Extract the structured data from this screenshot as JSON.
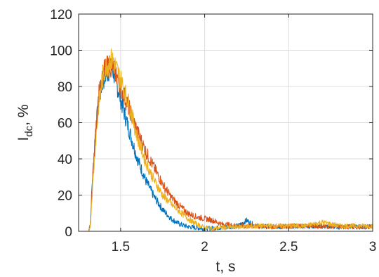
{
  "chart_data": {
    "type": "line",
    "title": "",
    "xlabel": "t, s",
    "ylabel_main": "I",
    "ylabel_sub": "dc",
    "ylabel_tail": ", %",
    "xlim": [
      1.25,
      3.0
    ],
    "ylim": [
      0,
      120
    ],
    "xticks": [
      1.5,
      2,
      2.5,
      3
    ],
    "xtick_labels": [
      "1.5",
      "2",
      "2.5",
      "3"
    ],
    "yticks": [
      0,
      20,
      40,
      60,
      80,
      100,
      120
    ],
    "ytick_labels": [
      "0",
      "20",
      "40",
      "60",
      "80",
      "100",
      "120"
    ],
    "grid": true,
    "legend": "none",
    "series": [
      {
        "color": "#0072BD",
        "x": [
          1.25,
          1.31,
          1.32,
          1.33,
          1.35,
          1.37,
          1.39,
          1.41,
          1.43,
          1.45,
          1.47,
          1.5,
          1.55,
          1.6,
          1.65,
          1.7,
          1.75,
          1.8,
          1.85,
          1.9,
          1.95,
          2.0,
          2.1,
          2.2,
          2.25,
          2.3,
          2.4,
          2.6,
          2.8,
          3.0
        ],
        "y": [
          0,
          0,
          5,
          25,
          55,
          72,
          82,
          86,
          89,
          90,
          84,
          73,
          56,
          40,
          28,
          19,
          12,
          7,
          4,
          2.5,
          2,
          1.5,
          2,
          3,
          6,
          3,
          2.5,
          3,
          2.5,
          2.5
        ]
      },
      {
        "color": "#D95319",
        "x": [
          1.25,
          1.31,
          1.32,
          1.33,
          1.35,
          1.37,
          1.39,
          1.41,
          1.43,
          1.45,
          1.47,
          1.5,
          1.55,
          1.6,
          1.65,
          1.7,
          1.75,
          1.8,
          1.85,
          1.9,
          1.95,
          2.0,
          2.05,
          2.1,
          2.2,
          2.4,
          2.6,
          2.8,
          3.0
        ],
        "y": [
          0,
          0,
          4,
          22,
          52,
          75,
          86,
          90,
          91,
          92,
          88,
          80,
          68,
          55,
          44,
          35,
          26,
          19,
          14,
          10,
          8,
          7,
          6,
          4,
          3,
          2.5,
          3,
          2.5,
          2.5
        ]
      },
      {
        "color": "#EDB120",
        "x": [
          1.25,
          1.31,
          1.32,
          1.33,
          1.35,
          1.37,
          1.39,
          1.41,
          1.43,
          1.45,
          1.47,
          1.5,
          1.55,
          1.6,
          1.65,
          1.7,
          1.75,
          1.8,
          1.85,
          1.9,
          1.95,
          2.0,
          2.05,
          2.1,
          2.2,
          2.4,
          2.6,
          2.7,
          2.8,
          3.0
        ],
        "y": [
          0,
          0,
          4,
          20,
          48,
          70,
          84,
          90,
          93,
          95,
          91,
          84,
          70,
          52,
          38,
          28,
          20,
          15,
          11,
          7,
          4,
          2,
          1.5,
          2,
          2.5,
          3,
          3,
          5,
          3,
          3
        ]
      }
    ]
  }
}
